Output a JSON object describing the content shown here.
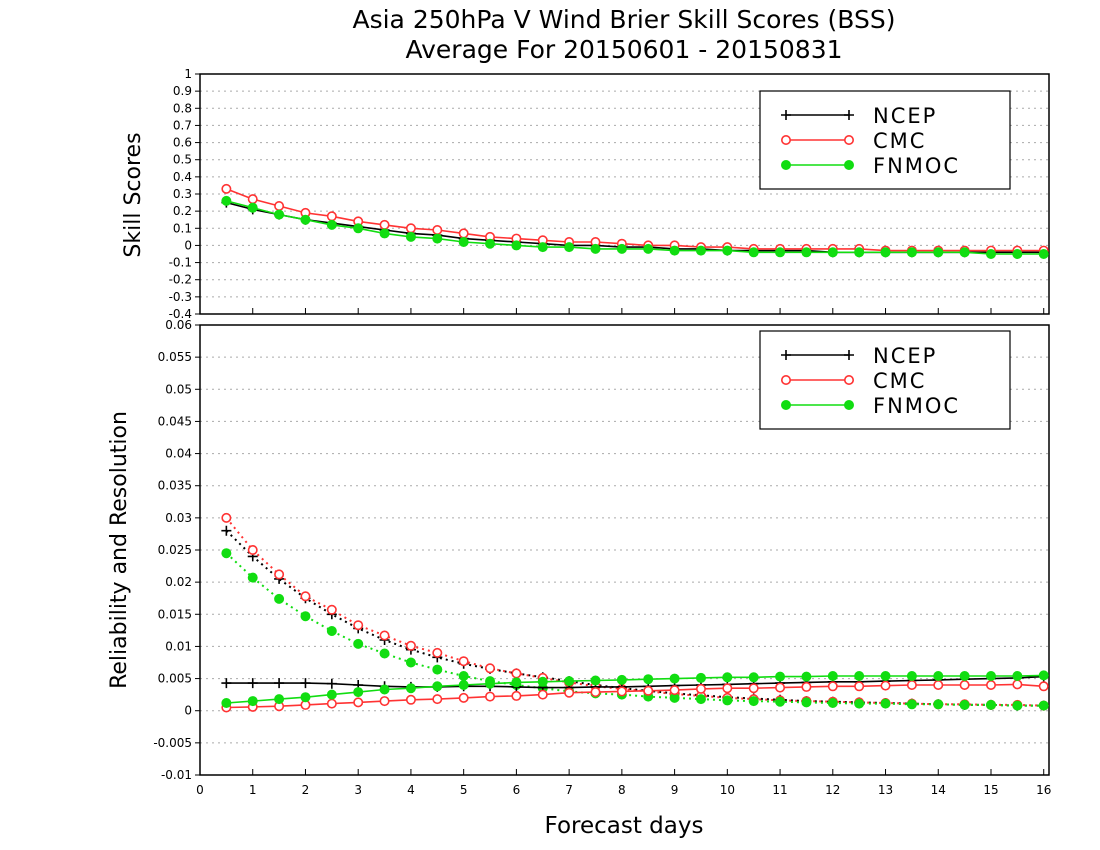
{
  "title_line1": "Asia 250hPa V Wind Brier Skill Scores (BSS)",
  "title_line2": "Average For 20150601 - 20150831",
  "xlabel": "Forecast days",
  "colors": {
    "NCEP": "#000000",
    "CMC": "#ff3333",
    "FNMOC": "#11dd11"
  },
  "chart_data": [
    {
      "type": "line",
      "ylabel": "Skill Scores",
      "ylim": [
        -0.4,
        1.0
      ],
      "yticks": [
        "1",
        "0.9",
        "0.8",
        "0.7",
        "0.6",
        "0.5",
        "0.4",
        "0.3",
        "0.2",
        "0.1",
        "0",
        "-0.1",
        "-0.2",
        "-0.3",
        "-0.4"
      ],
      "xlim": [
        0,
        16.1
      ],
      "xticks": [
        "0",
        "1",
        "2",
        "3",
        "4",
        "5",
        "6",
        "7",
        "8",
        "9",
        "10",
        "11",
        "12",
        "13",
        "14",
        "15",
        "16"
      ],
      "grid": true,
      "legend": {
        "position": "top-right",
        "entries": [
          "NCEP",
          "CMC",
          "FNMOC"
        ]
      },
      "x": [
        0.5,
        1,
        1.5,
        2,
        2.5,
        3,
        3.5,
        4,
        4.5,
        5,
        5.5,
        6,
        6.5,
        7,
        7.5,
        8,
        8.5,
        9,
        9.5,
        10,
        10.5,
        11,
        11.5,
        12,
        12.5,
        13,
        13.5,
        14,
        14.5,
        15,
        15.5,
        16
      ],
      "series": [
        {
          "name": "NCEP",
          "style": "solid",
          "marker": "plus",
          "values": [
            0.25,
            0.21,
            0.18,
            0.15,
            0.13,
            0.11,
            0.09,
            0.07,
            0.06,
            0.04,
            0.03,
            0.02,
            0.01,
            0.0,
            0.0,
            -0.01,
            -0.01,
            -0.02,
            -0.02,
            -0.03,
            -0.03,
            -0.03,
            -0.03,
            -0.04,
            -0.04,
            -0.04,
            -0.04,
            -0.04,
            -0.04,
            -0.04,
            -0.04,
            -0.04
          ]
        },
        {
          "name": "CMC",
          "style": "solid",
          "marker": "open-circle",
          "values": [
            0.33,
            0.27,
            0.23,
            0.19,
            0.17,
            0.14,
            0.12,
            0.1,
            0.09,
            0.07,
            0.05,
            0.04,
            0.03,
            0.02,
            0.02,
            0.01,
            0.0,
            0.0,
            -0.01,
            -0.01,
            -0.02,
            -0.02,
            -0.02,
            -0.02,
            -0.02,
            -0.03,
            -0.03,
            -0.03,
            -0.03,
            -0.03,
            -0.03,
            -0.03
          ]
        },
        {
          "name": "FNMOC",
          "style": "solid",
          "marker": "filled-circle",
          "values": [
            0.26,
            0.22,
            0.18,
            0.15,
            0.12,
            0.1,
            0.07,
            0.05,
            0.04,
            0.02,
            0.01,
            0.0,
            -0.01,
            -0.01,
            -0.02,
            -0.02,
            -0.02,
            -0.03,
            -0.03,
            -0.03,
            -0.04,
            -0.04,
            -0.04,
            -0.04,
            -0.04,
            -0.04,
            -0.04,
            -0.04,
            -0.04,
            -0.05,
            -0.05,
            -0.05
          ]
        }
      ]
    },
    {
      "type": "line",
      "ylabel": "Reliability and Resolution",
      "ylim": [
        -0.01,
        0.06
      ],
      "yticks": [
        "0.06",
        "0.055",
        "0.05",
        "0.045",
        "0.04",
        "0.035",
        "0.03",
        "0.025",
        "0.02",
        "0.015",
        "0.01",
        "0.005",
        "0",
        "-0.005",
        "-0.01"
      ],
      "xlim": [
        0,
        16.1
      ],
      "xticks": [
        "0",
        "1",
        "2",
        "3",
        "4",
        "5",
        "6",
        "7",
        "8",
        "9",
        "10",
        "11",
        "12",
        "13",
        "14",
        "15",
        "16"
      ],
      "grid": true,
      "legend": {
        "position": "top-right",
        "entries": [
          "NCEP",
          "CMC",
          "FNMOC"
        ]
      },
      "x": [
        0.5,
        1,
        1.5,
        2,
        2.5,
        3,
        3.5,
        4,
        4.5,
        5,
        5.5,
        6,
        6.5,
        7,
        7.5,
        8,
        8.5,
        9,
        9.5,
        10,
        10.5,
        11,
        11.5,
        12,
        12.5,
        13,
        13.5,
        14,
        14.5,
        15,
        15.5,
        16
      ],
      "series": [
        {
          "name": "NCEP",
          "style": "solid",
          "marker": "plus",
          "values": [
            0.0043,
            0.0043,
            0.0043,
            0.0043,
            0.0042,
            0.004,
            0.0038,
            0.0037,
            0.0037,
            0.0038,
            0.0038,
            0.0037,
            0.0036,
            0.0036,
            0.0037,
            0.0037,
            0.0038,
            0.0039,
            0.004,
            0.0041,
            0.0042,
            0.0043,
            0.0044,
            0.0045,
            0.0045,
            0.0046,
            0.0047,
            0.0048,
            0.0049,
            0.005,
            0.0051,
            0.0053
          ]
        },
        {
          "name": "CMC",
          "style": "solid",
          "marker": "open-circle",
          "values": [
            0.0005,
            0.0006,
            0.0007,
            0.0009,
            0.0011,
            0.0013,
            0.0015,
            0.0017,
            0.0018,
            0.002,
            0.0022,
            0.0023,
            0.0025,
            0.0028,
            0.0029,
            0.003,
            0.0031,
            0.0032,
            0.0034,
            0.0035,
            0.0035,
            0.0036,
            0.0037,
            0.0038,
            0.0038,
            0.0039,
            0.004,
            0.004,
            0.004,
            0.004,
            0.0041,
            0.0038
          ]
        },
        {
          "name": "FNMOC",
          "style": "solid",
          "marker": "filled-circle",
          "values": [
            0.0012,
            0.0015,
            0.0018,
            0.0021,
            0.0025,
            0.0029,
            0.0033,
            0.0035,
            0.0038,
            0.004,
            0.0042,
            0.0044,
            0.0045,
            0.0046,
            0.0047,
            0.0048,
            0.0049,
            0.005,
            0.0051,
            0.0052,
            0.0052,
            0.0053,
            0.0053,
            0.0054,
            0.0054,
            0.0054,
            0.0054,
            0.0054,
            0.0054,
            0.0054,
            0.0054,
            0.0055
          ]
        },
        {
          "name": "NCEP",
          "style": "dotted",
          "marker": "plus",
          "values": [
            0.028,
            0.024,
            0.0205,
            0.0175,
            0.015,
            0.0128,
            0.011,
            0.0095,
            0.0083,
            0.0073,
            0.0065,
            0.0058,
            0.0052,
            0.0046,
            0.004,
            0.0035,
            0.0031,
            0.0027,
            0.0024,
            0.0021,
            0.0019,
            0.0017,
            0.0015,
            0.0014,
            0.0013,
            0.0012,
            0.0011,
            0.001,
            0.0009,
            0.0009,
            0.0008,
            0.0008
          ]
        },
        {
          "name": "CMC",
          "style": "dotted",
          "marker": "open-circle",
          "values": [
            0.03,
            0.025,
            0.0212,
            0.0178,
            0.0157,
            0.0133,
            0.0117,
            0.0101,
            0.009,
            0.0077,
            0.0066,
            0.0058,
            0.0051,
            0.0044,
            0.0038,
            0.0034,
            0.003,
            0.0026,
            0.0023,
            0.002,
            0.0018,
            0.0016,
            0.0015,
            0.0014,
            0.0013,
            0.0012,
            0.0011,
            0.001,
            0.001,
            0.0009,
            0.0009,
            0.0008
          ]
        },
        {
          "name": "FNMOC",
          "style": "dotted",
          "marker": "filled-circle",
          "values": [
            0.0245,
            0.0207,
            0.0174,
            0.0147,
            0.0124,
            0.0104,
            0.0089,
            0.0075,
            0.0064,
            0.0054,
            0.0046,
            0.004,
            0.0035,
            0.003,
            0.0027,
            0.0025,
            0.0022,
            0.002,
            0.0018,
            0.0016,
            0.0015,
            0.0014,
            0.0013,
            0.0012,
            0.0011,
            0.0011,
            0.001,
            0.001,
            0.0009,
            0.0009,
            0.0008,
            0.0008
          ]
        }
      ]
    }
  ]
}
